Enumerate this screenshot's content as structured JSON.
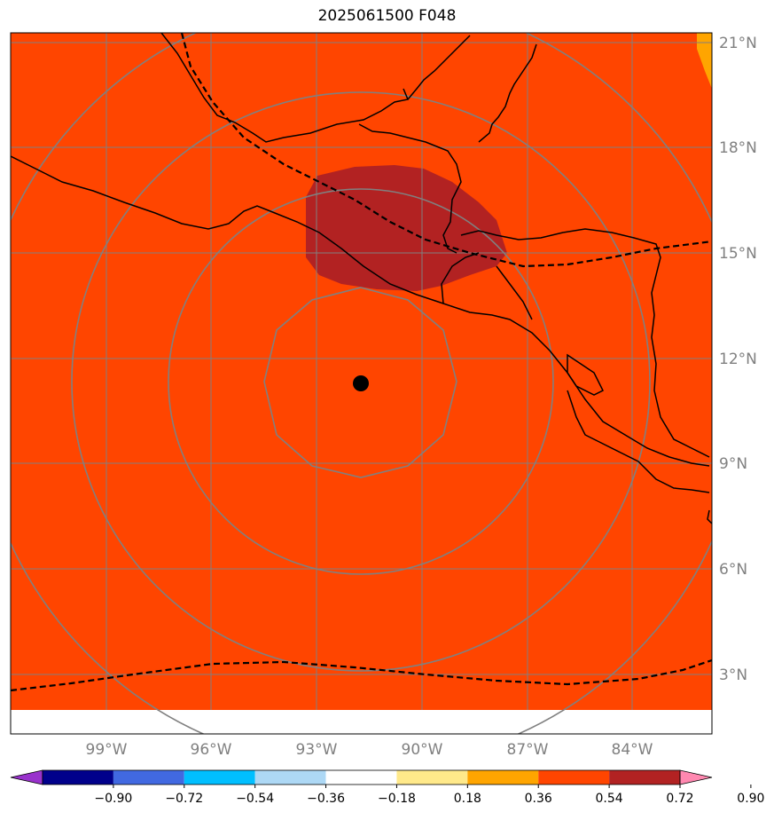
{
  "title": "2025061500 F048",
  "map": {
    "background_color": "#ff4500",
    "shaded_region_color": "#b22222",
    "corner_region_color": "#ffa500",
    "center_marker": "storm-center-dot",
    "lon_ticks": [
      "99°W",
      "96°W",
      "93°W",
      "90°W",
      "87°W",
      "84°W"
    ],
    "lat_ticks": [
      "21°N",
      "18°N",
      "15°N",
      "12°N",
      "9°N",
      "6°N",
      "3°N"
    ]
  },
  "colorbar": {
    "levels": [
      "−0.90",
      "−0.72",
      "−0.54",
      "−0.36",
      "−0.18",
      "0.18",
      "0.36",
      "0.54",
      "0.72",
      "0.90"
    ],
    "colors": [
      "#9932cc",
      "#00008b",
      "#4169e1",
      "#00bfff",
      "#add8f5",
      "#ffffff",
      "#ffe98a",
      "#ffa500",
      "#ff4500",
      "#b22222",
      "#ff88b0"
    ]
  }
}
